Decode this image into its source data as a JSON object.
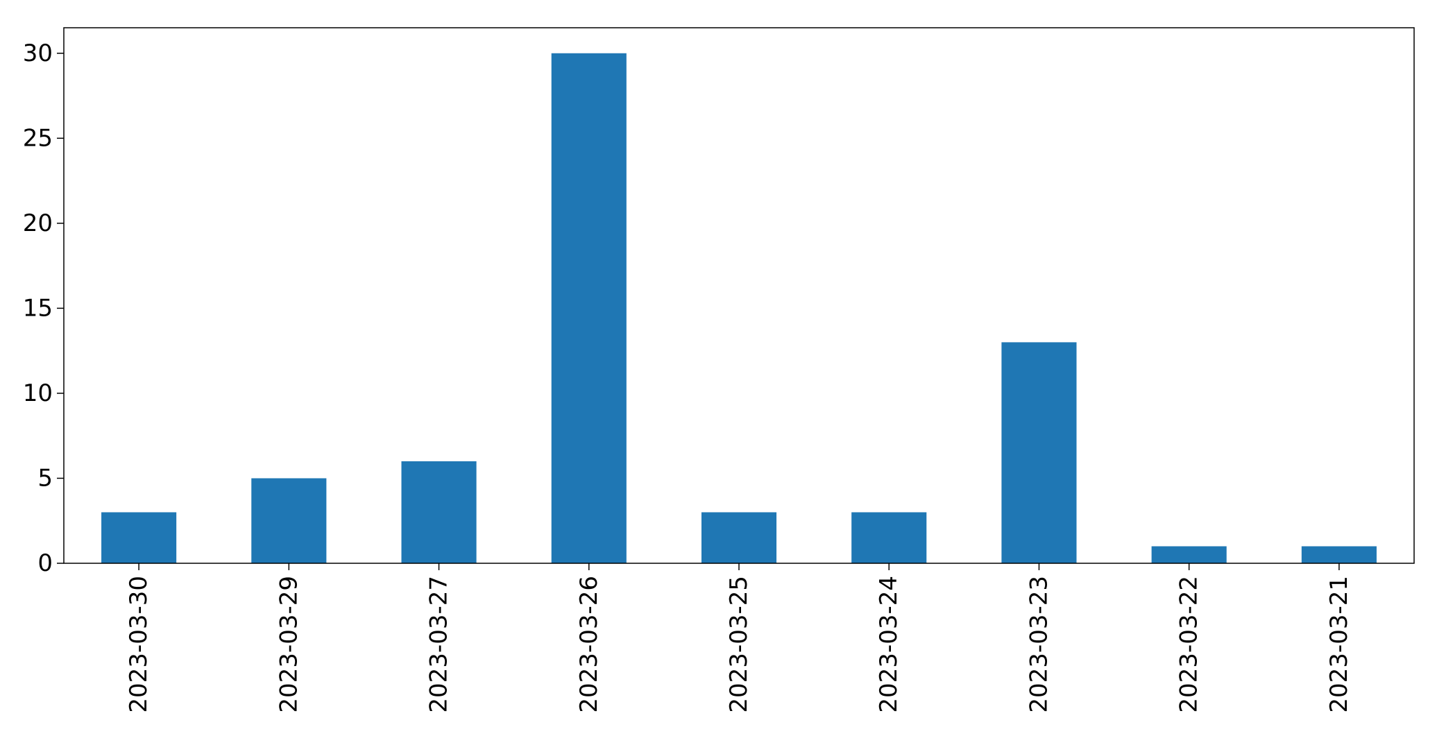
{
  "chart_data": {
    "type": "bar",
    "categories": [
      "2023-03-30",
      "2023-03-29",
      "2023-03-27",
      "2023-03-26",
      "2023-03-25",
      "2023-03-24",
      "2023-03-23",
      "2023-03-22",
      "2023-03-21"
    ],
    "values": [
      3,
      5,
      6,
      30,
      3,
      3,
      13,
      1,
      1
    ],
    "title": "",
    "xlabel": "",
    "ylabel": "",
    "ylim": [
      0,
      31.5
    ],
    "yticks": [
      0,
      5,
      10,
      15,
      20,
      25,
      30
    ],
    "grid": false,
    "legend": "none",
    "bar_color": "#1f77b4"
  }
}
